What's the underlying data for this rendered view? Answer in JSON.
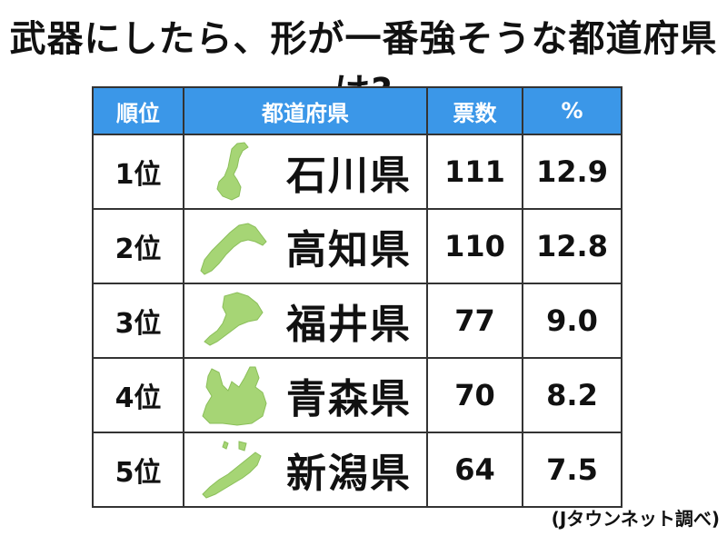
{
  "title": "武器にしたら、形が一番強そうな都道府県は?",
  "source": "(Jタウンネット調べ)",
  "colors": {
    "header_bg": "#3b97e8",
    "map_fill": "#a6d575",
    "map_stroke": "#8bbf5a"
  },
  "chart_data": {
    "type": "table",
    "columns": [
      "順位",
      "都道府県",
      "票数",
      "%"
    ],
    "rows": [
      {
        "rank": "1位",
        "prefecture": "石川県",
        "votes": "111",
        "percent": "12.9",
        "map_icon": "ishikawa-map-icon"
      },
      {
        "rank": "2位",
        "prefecture": "高知県",
        "votes": "110",
        "percent": "12.8",
        "map_icon": "kochi-map-icon"
      },
      {
        "rank": "3位",
        "prefecture": "福井県",
        "votes": "77",
        "percent": "9.0",
        "map_icon": "fukui-map-icon"
      },
      {
        "rank": "4位",
        "prefecture": "青森県",
        "votes": "70",
        "percent": "8.2",
        "map_icon": "aomori-map-icon"
      },
      {
        "rank": "5位",
        "prefecture": "新潟県",
        "votes": "64",
        "percent": "7.5",
        "map_icon": "niigata-map-icon"
      }
    ]
  }
}
